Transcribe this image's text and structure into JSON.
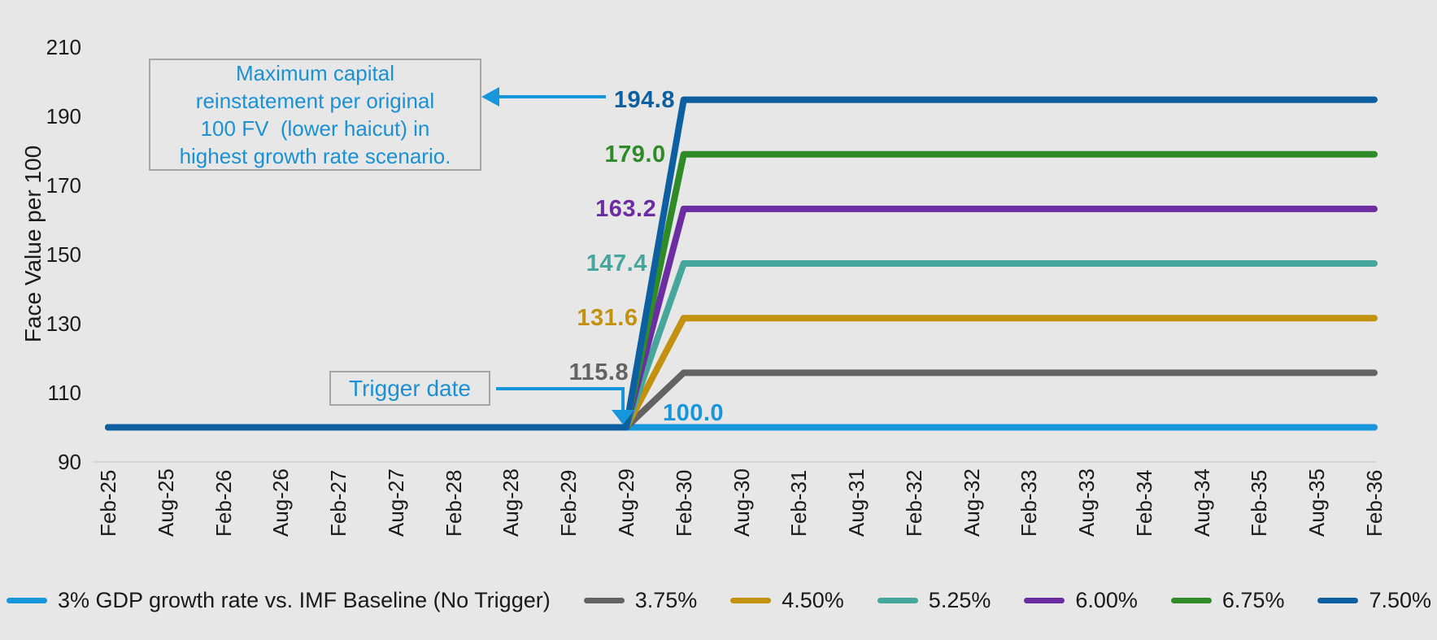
{
  "background_color": "#E7E7E7",
  "accent_blue": "#1796DC",
  "annotations": {
    "max_reinstatement_text": "Maximum capital\nreinstatement per original\n100 FV  (lower haicut) in\nhighest growth rate scenario.",
    "trigger_label": "Trigger date"
  },
  "chart_data": {
    "type": "line",
    "title": "",
    "xlabel": "",
    "ylabel": "Face Value per 100",
    "ylim": [
      90,
      210
    ],
    "y_ticks": [
      90,
      110,
      130,
      150,
      170,
      190,
      210
    ],
    "grid": "off",
    "legend_position": "bottom",
    "categories": [
      "Feb-25",
      "Aug-25",
      "Feb-26",
      "Aug-26",
      "Feb-27",
      "Aug-27",
      "Feb-28",
      "Aug-28",
      "Feb-29",
      "Aug-29",
      "Feb-30",
      "Aug-30",
      "Feb-31",
      "Aug-31",
      "Feb-32",
      "Aug-32",
      "Feb-33",
      "Aug-33",
      "Feb-34",
      "Aug-34",
      "Feb-35",
      "Aug-35",
      "Feb-36"
    ],
    "trigger_category": "Aug-29",
    "plateau_category": "Feb-30",
    "series": [
      {
        "name": "3% GDP growth rate vs. IMF Baseline (No Trigger)",
        "color": "#1796DC",
        "end_label": "100.0",
        "values": [
          100,
          100,
          100,
          100,
          100,
          100,
          100,
          100,
          100,
          100,
          100,
          100,
          100,
          100,
          100,
          100,
          100,
          100,
          100,
          100,
          100,
          100,
          100
        ]
      },
      {
        "name": "3.75%",
        "color": "#636363",
        "end_label": "115.8",
        "values": [
          100,
          100,
          100,
          100,
          100,
          100,
          100,
          100,
          100,
          100,
          115.8,
          115.8,
          115.8,
          115.8,
          115.8,
          115.8,
          115.8,
          115.8,
          115.8,
          115.8,
          115.8,
          115.8,
          115.8
        ]
      },
      {
        "name": "4.50%",
        "color": "#C2910E",
        "end_label": "131.6",
        "values": [
          100,
          100,
          100,
          100,
          100,
          100,
          100,
          100,
          100,
          100,
          131.6,
          131.6,
          131.6,
          131.6,
          131.6,
          131.6,
          131.6,
          131.6,
          131.6,
          131.6,
          131.6,
          131.6,
          131.6
        ]
      },
      {
        "name": "5.25%",
        "color": "#45A79B",
        "end_label": "147.4",
        "values": [
          100,
          100,
          100,
          100,
          100,
          100,
          100,
          100,
          100,
          100,
          147.4,
          147.4,
          147.4,
          147.4,
          147.4,
          147.4,
          147.4,
          147.4,
          147.4,
          147.4,
          147.4,
          147.4,
          147.4
        ]
      },
      {
        "name": "6.00%",
        "color": "#6C2DA3",
        "end_label": "163.2",
        "values": [
          100,
          100,
          100,
          100,
          100,
          100,
          100,
          100,
          100,
          100,
          163.2,
          163.2,
          163.2,
          163.2,
          163.2,
          163.2,
          163.2,
          163.2,
          163.2,
          163.2,
          163.2,
          163.2,
          163.2
        ]
      },
      {
        "name": "6.75%",
        "color": "#2F8A28",
        "end_label": "179.0",
        "values": [
          100,
          100,
          100,
          100,
          100,
          100,
          100,
          100,
          100,
          100,
          179.0,
          179.0,
          179.0,
          179.0,
          179.0,
          179.0,
          179.0,
          179.0,
          179.0,
          179.0,
          179.0,
          179.0,
          179.0
        ]
      },
      {
        "name": "7.50%",
        "color": "#0C60A1",
        "end_label": "194.8",
        "values": [
          100,
          100,
          100,
          100,
          100,
          100,
          100,
          100,
          100,
          100,
          194.8,
          194.8,
          194.8,
          194.8,
          194.8,
          194.8,
          194.8,
          194.8,
          194.8,
          194.8,
          194.8,
          194.8,
          194.8
        ]
      }
    ]
  }
}
